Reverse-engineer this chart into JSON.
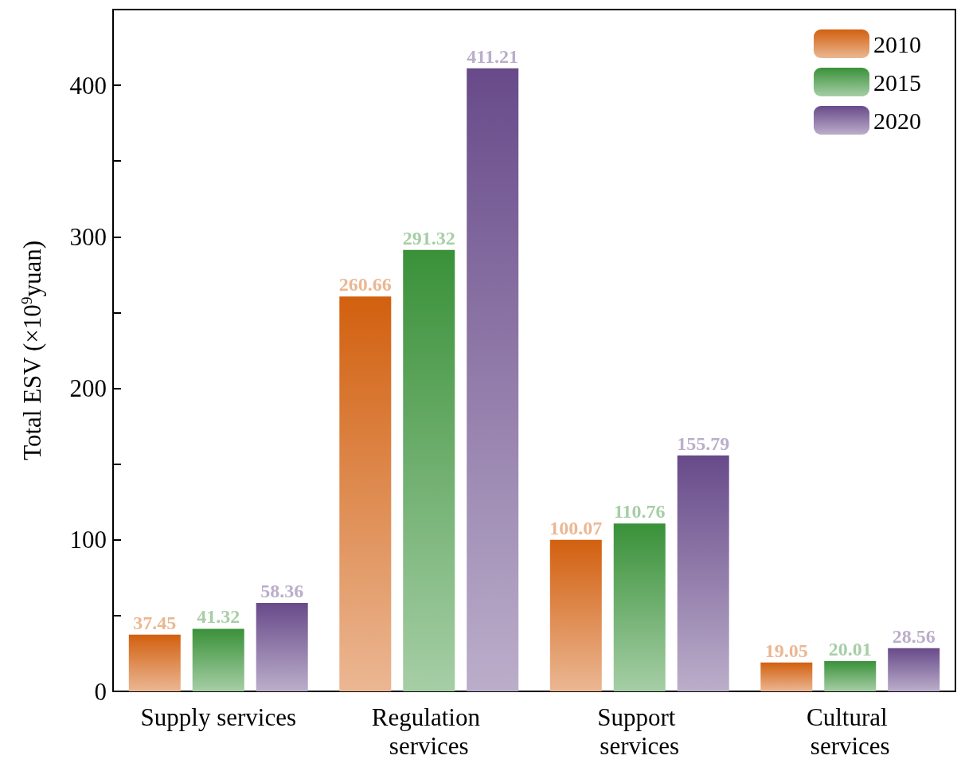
{
  "chart_data": {
    "type": "bar",
    "ylabel": "Total ESV (×10$^{9}$yuan)",
    "categories": [
      "Supply services",
      "Regulation services",
      "Support services",
      "Cultural services"
    ],
    "series": [
      {
        "name": "2010",
        "color": "#d2600f",
        "values": [
          37.45,
          260.66,
          100.07,
          19.05
        ]
      },
      {
        "name": "2015",
        "color": "#3a9139",
        "values": [
          41.32,
          291.32,
          110.76,
          20.01
        ]
      },
      {
        "name": "2020",
        "color": "#684a8a",
        "values": [
          58.36,
          411.21,
          155.79,
          28.56
        ]
      }
    ],
    "ylim": [
      0,
      450
    ],
    "yticks": [
      0,
      {
        "value": 50,
        "label": null
      },
      100,
      {
        "value": 150,
        "label": null
      },
      200,
      {
        "value": 250,
        "label": null
      },
      300,
      {
        "value": 350,
        "label": null
      },
      400,
      {
        "value": 450,
        "label": null
      }
    ],
    "data_labels": true,
    "grid": false,
    "legend": "top right"
  }
}
